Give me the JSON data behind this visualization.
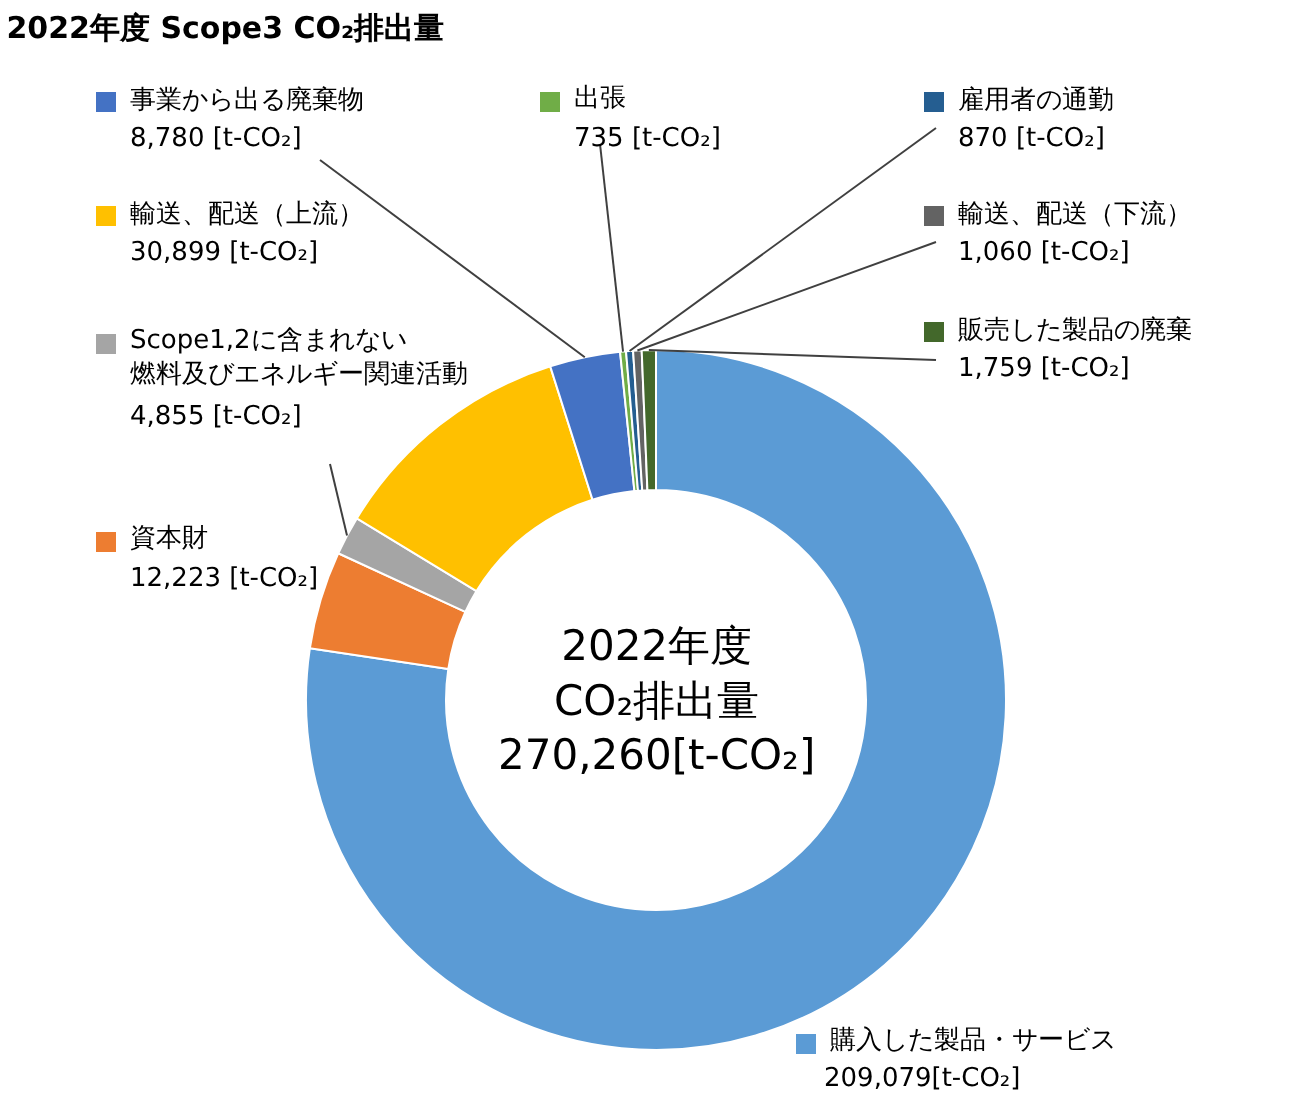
{
  "chart_data": {
    "type": "donut",
    "title": "2022年度 Scope3 CO₂排出量",
    "categories": [
      "購入した製品・サービス",
      "資本財",
      "Scope1,2に含まれない燃料及びエネルギー関連活動",
      "輸送、配送（上流）",
      "事業から出る廃棄物",
      "出張",
      "雇用者の通勤",
      "輸送、配送（下流）",
      "販売した製品の廃棄"
    ],
    "values": [
      209079,
      12223,
      4855,
      30899,
      8780,
      735,
      870,
      1060,
      1759
    ],
    "value_labels": [
      "209,079[t-CO₂]",
      "12,223 [t-CO₂]",
      "4,855 [t-CO₂]",
      "30,899 [t-CO₂]",
      "8,780 [t-CO₂]",
      "735 [t-CO₂]",
      "870 [t-CO₂]",
      "1,060 [t-CO₂]",
      "1,759 [t-CO₂]"
    ],
    "colors": [
      "#5b9bd5",
      "#ed7d31",
      "#a5a5a5",
      "#ffc000",
      "#4472c4",
      "#70ad47",
      "#255e91",
      "#636363",
      "#43682b"
    ],
    "annotations": [
      "2022年度\nCO₂排出量\n270,260[t-CO₂]"
    ],
    "legend": "left"
  }
}
